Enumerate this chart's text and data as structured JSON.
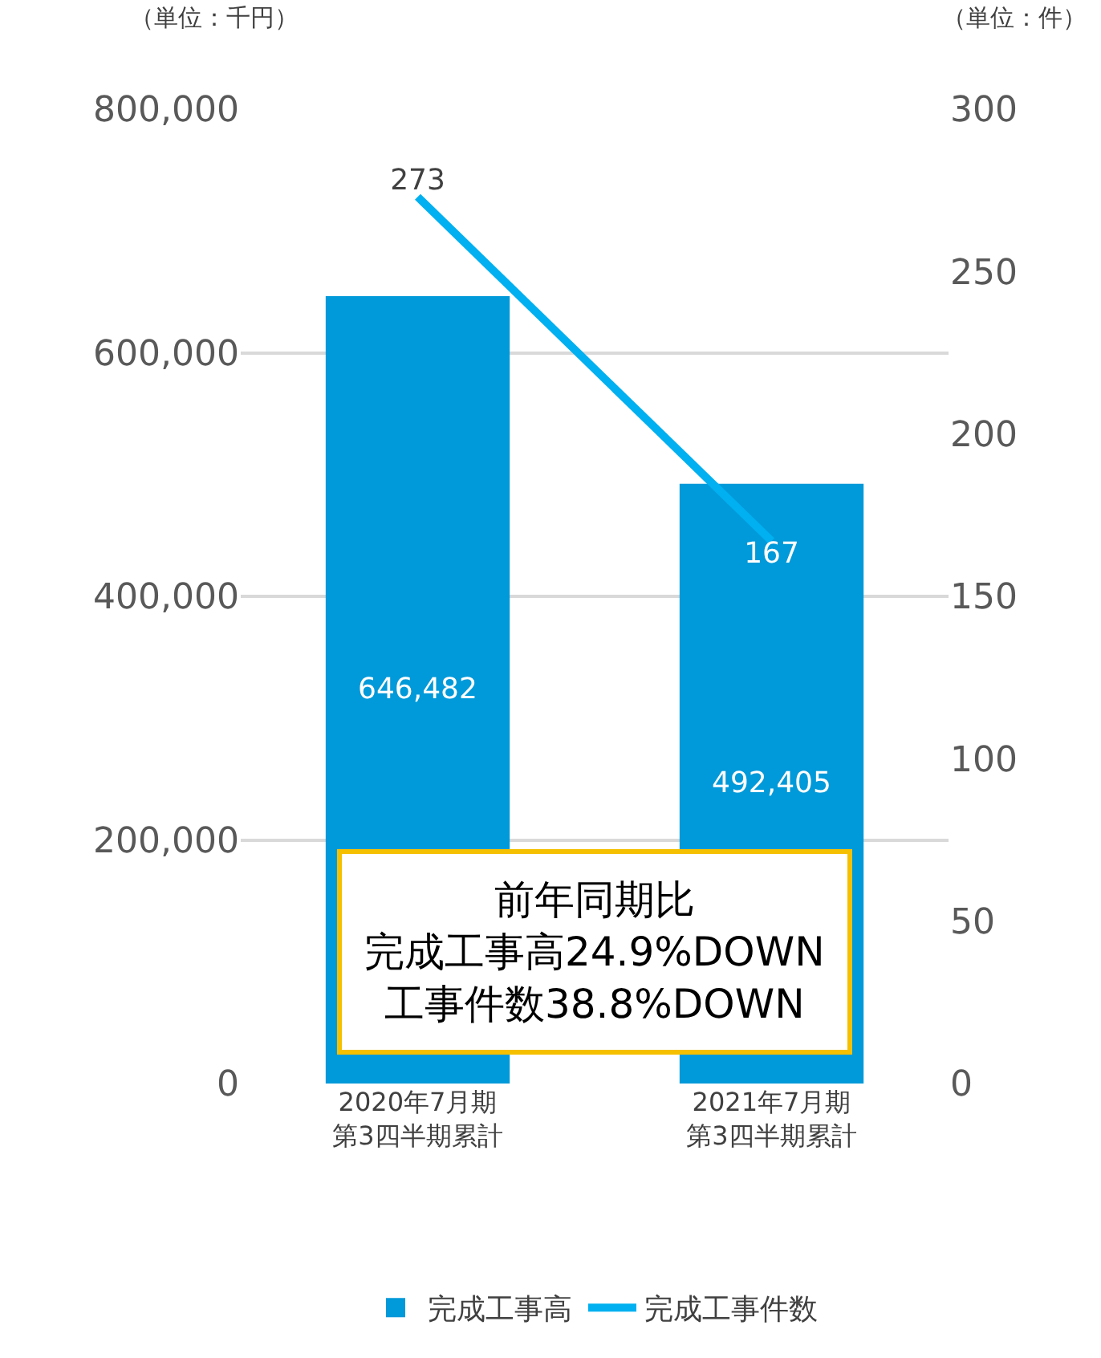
{
  "chart_data": {
    "type": "bar",
    "categories": [
      "2020年7月期第3四半期累計",
      "2021年7月期第3四半期累計"
    ],
    "series": [
      {
        "name": "完成工事高",
        "color": "#0099d9",
        "values": [
          646482,
          492405
        ],
        "value_labels": [
          "646,482",
          "492,405"
        ]
      },
      {
        "name": "完成工事件数",
        "type": "line",
        "axis": "y2",
        "color": "#00b0f0",
        "values": [
          273,
          167
        ],
        "value_labels": [
          "273",
          "167"
        ],
        "marker": "none"
      }
    ],
    "ylabel": "（単位：千円）",
    "y2label": "（単位：件）",
    "ylim": [
      0,
      800000
    ],
    "yticks": [
      {
        "value": 0,
        "label": "0"
      },
      {
        "value": 200000,
        "label": "200,000"
      },
      {
        "value": 400000,
        "label": "400,000"
      },
      {
        "value": 600000,
        "label": "600,000"
      },
      {
        "value": 800000,
        "label": "800,000"
      }
    ],
    "y2lim": [
      0,
      300
    ],
    "y2ticks": [
      0,
      50,
      100,
      150,
      200,
      250,
      300
    ],
    "grid": "y",
    "legend": "bottom",
    "annotations": [
      "前年同期比",
      "完成工事高24.9%DOWN",
      "工事件数38.8%DOWN"
    ]
  }
}
